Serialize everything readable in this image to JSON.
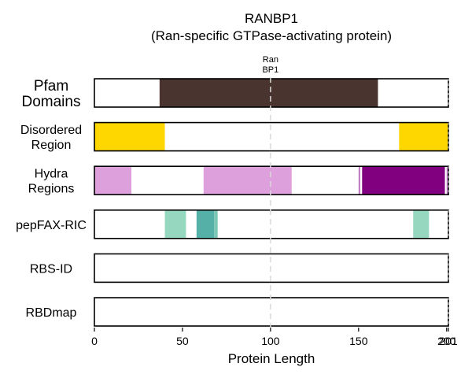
{
  "chart_data": {
    "type": "bar",
    "title": "RANBP1",
    "subtitle": "(Ran-specific GTPase-activating protein)",
    "xlabel": "Protein Length",
    "xlim": [
      0,
      201
    ],
    "protein_length": 201,
    "xticks": [
      {
        "value": 0,
        "label": "0"
      },
      {
        "value": 50,
        "label": "50"
      },
      {
        "value": 100,
        "label": "100"
      },
      {
        "value": 150,
        "label": "150"
      },
      {
        "value": 200,
        "label": "200"
      },
      {
        "value": 201,
        "label": "201"
      }
    ],
    "reference_line": {
      "value": 100,
      "color": "#d9d9d9"
    },
    "annotation": {
      "x": 100,
      "lines": [
        "Ran",
        "BP1"
      ]
    },
    "rows": [
      {
        "label_lines": [
          "Pfam",
          "Domains"
        ],
        "big": true,
        "segments": [
          {
            "start": 37,
            "end": 161,
            "color": "#4a3430"
          }
        ]
      },
      {
        "label_lines": [
          "Disordered",
          "Region"
        ],
        "big": false,
        "segments": [
          {
            "start": 0,
            "end": 40,
            "color": "#ffd700"
          },
          {
            "start": 173,
            "end": 201,
            "color": "#ffd700"
          }
        ]
      },
      {
        "label_lines": [
          "Hydra",
          "Regions"
        ],
        "big": false,
        "segments": [
          {
            "start": 0,
            "end": 21,
            "color": "#dda0dd"
          },
          {
            "start": 62,
            "end": 112,
            "color": "#dda0dd"
          },
          {
            "start": 150,
            "end": 151,
            "color": "#c37fc6"
          },
          {
            "start": 152,
            "end": 199,
            "color": "#800080"
          },
          {
            "start": 200,
            "end": 201,
            "color": "#c37fc6"
          }
        ]
      },
      {
        "label_lines": [
          "pepFAX-RIC"
        ],
        "big": false,
        "segments": [
          {
            "start": 40,
            "end": 52,
            "color": "#96d7bf"
          },
          {
            "start": 58,
            "end": 68,
            "color": "#55b0a8"
          },
          {
            "start": 68,
            "end": 70,
            "color": "#7cc6b6"
          },
          {
            "start": 181,
            "end": 190,
            "color": "#96d7bf"
          }
        ]
      },
      {
        "label_lines": [
          "RBS-ID"
        ],
        "big": false,
        "segments": []
      },
      {
        "label_lines": [
          "RBDmap"
        ],
        "big": false,
        "segments": []
      }
    ]
  }
}
